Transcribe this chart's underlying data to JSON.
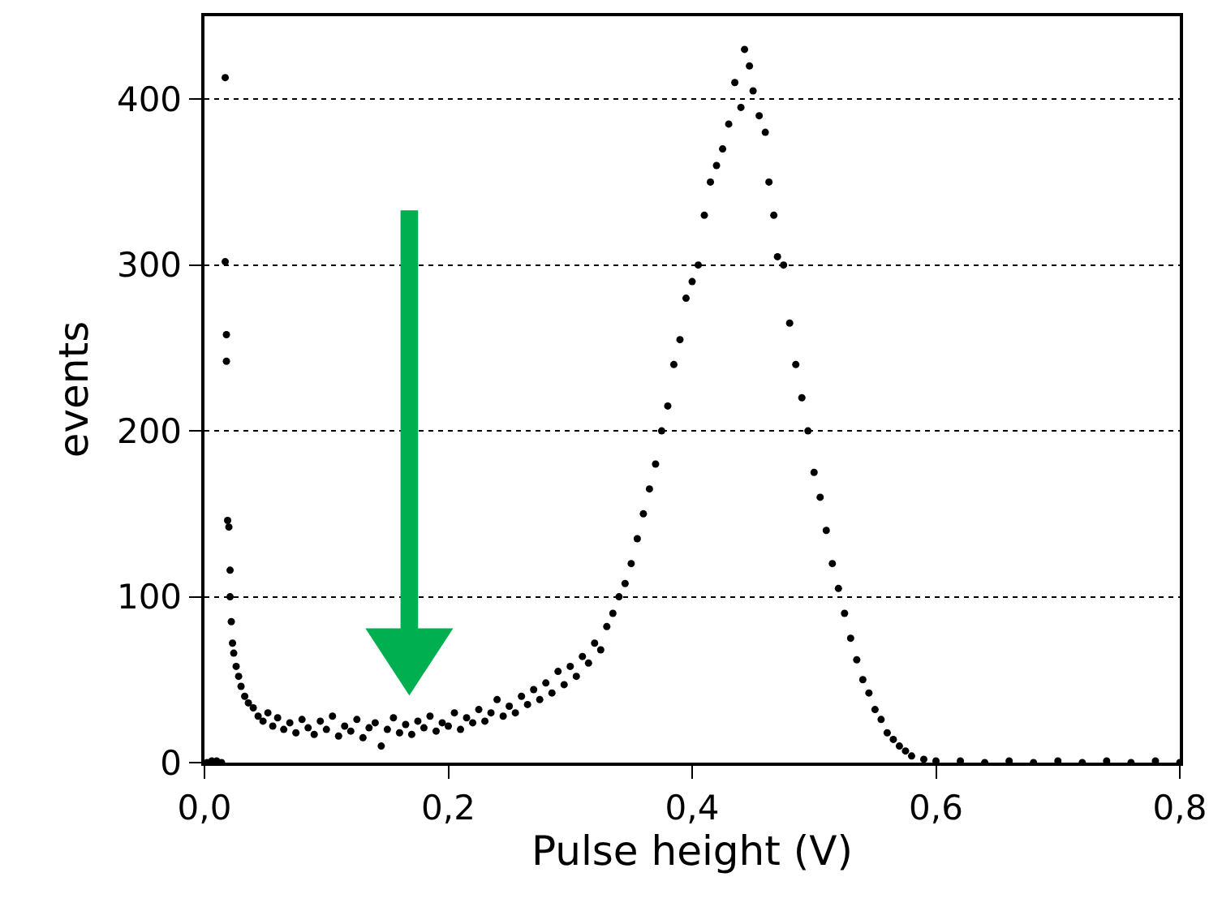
{
  "chart_data": {
    "type": "scatter",
    "xlabel": "Pulse height (V)",
    "ylabel": "events",
    "x": [
      0.002,
      0.006,
      0.01,
      0.014,
      0.017,
      0.017,
      0.018,
      0.018,
      0.019,
      0.02,
      0.021,
      0.021,
      0.022,
      0.023,
      0.024,
      0.026,
      0.028,
      0.03,
      0.033,
      0.036,
      0.04,
      0.044,
      0.048,
      0.052,
      0.056,
      0.06,
      0.065,
      0.07,
      0.075,
      0.08,
      0.085,
      0.09,
      0.095,
      0.1,
      0.105,
      0.11,
      0.115,
      0.12,
      0.125,
      0.13,
      0.135,
      0.14,
      0.145,
      0.15,
      0.155,
      0.16,
      0.165,
      0.17,
      0.175,
      0.18,
      0.185,
      0.19,
      0.195,
      0.2,
      0.205,
      0.21,
      0.215,
      0.22,
      0.225,
      0.23,
      0.235,
      0.24,
      0.245,
      0.25,
      0.255,
      0.26,
      0.265,
      0.27,
      0.275,
      0.28,
      0.285,
      0.29,
      0.295,
      0.3,
      0.305,
      0.31,
      0.315,
      0.32,
      0.325,
      0.33,
      0.335,
      0.34,
      0.345,
      0.35,
      0.355,
      0.36,
      0.365,
      0.37,
      0.375,
      0.38,
      0.385,
      0.39,
      0.395,
      0.4,
      0.405,
      0.41,
      0.415,
      0.42,
      0.425,
      0.43,
      0.435,
      0.44,
      0.443,
      0.447,
      0.45,
      0.455,
      0.46,
      0.463,
      0.467,
      0.47,
      0.475,
      0.48,
      0.485,
      0.49,
      0.495,
      0.5,
      0.505,
      0.51,
      0.515,
      0.52,
      0.525,
      0.53,
      0.535,
      0.54,
      0.545,
      0.55,
      0.555,
      0.56,
      0.565,
      0.57,
      0.575,
      0.58,
      0.59,
      0.6,
      0.62,
      0.64,
      0.66,
      0.68,
      0.7,
      0.72,
      0.74,
      0.76,
      0.78,
      0.8
    ],
    "series": [
      {
        "color": "#000000",
        "values": [
          0,
          1,
          1,
          0,
          413,
          302,
          258,
          242,
          146,
          142,
          116,
          100,
          85,
          72,
          66,
          58,
          52,
          46,
          40,
          36,
          33,
          28,
          25,
          30,
          22,
          27,
          20,
          24,
          18,
          26,
          21,
          17,
          25,
          20,
          28,
          16,
          22,
          19,
          26,
          15,
          21,
          24,
          10,
          20,
          27,
          18,
          23,
          17,
          25,
          21,
          28,
          19,
          24,
          22,
          30,
          20,
          27,
          24,
          32,
          25,
          30,
          38,
          28,
          34,
          30,
          40,
          35,
          44,
          38,
          48,
          42,
          55,
          47,
          58,
          52,
          64,
          60,
          72,
          68,
          82,
          90,
          100,
          108,
          120,
          135,
          150,
          165,
          180,
          200,
          215,
          240,
          255,
          280,
          290,
          300,
          330,
          350,
          360,
          370,
          385,
          410,
          395,
          430,
          420,
          405,
          390,
          380,
          350,
          330,
          305,
          300,
          265,
          240,
          220,
          200,
          175,
          160,
          140,
          120,
          105,
          90,
          75,
          62,
          50,
          42,
          32,
          26,
          18,
          14,
          10,
          7,
          4,
          2,
          1,
          1,
          0,
          1,
          0,
          1,
          0,
          1,
          0,
          1,
          0
        ]
      }
    ],
    "xlim": [
      0,
      0.8
    ],
    "xticks": [
      {
        "value": 0,
        "label": "0,0"
      },
      {
        "value": 0.2,
        "label": "0,2"
      },
      {
        "value": 0.4,
        "label": "0,4"
      },
      {
        "value": 0.6,
        "label": "0,6"
      },
      {
        "value": 0.8,
        "label": "0,8"
      }
    ],
    "ylim": [
      0,
      450
    ],
    "yticks": [
      0,
      100,
      200,
      300,
      400
    ],
    "grid": "y",
    "marker": "circle"
  }
}
